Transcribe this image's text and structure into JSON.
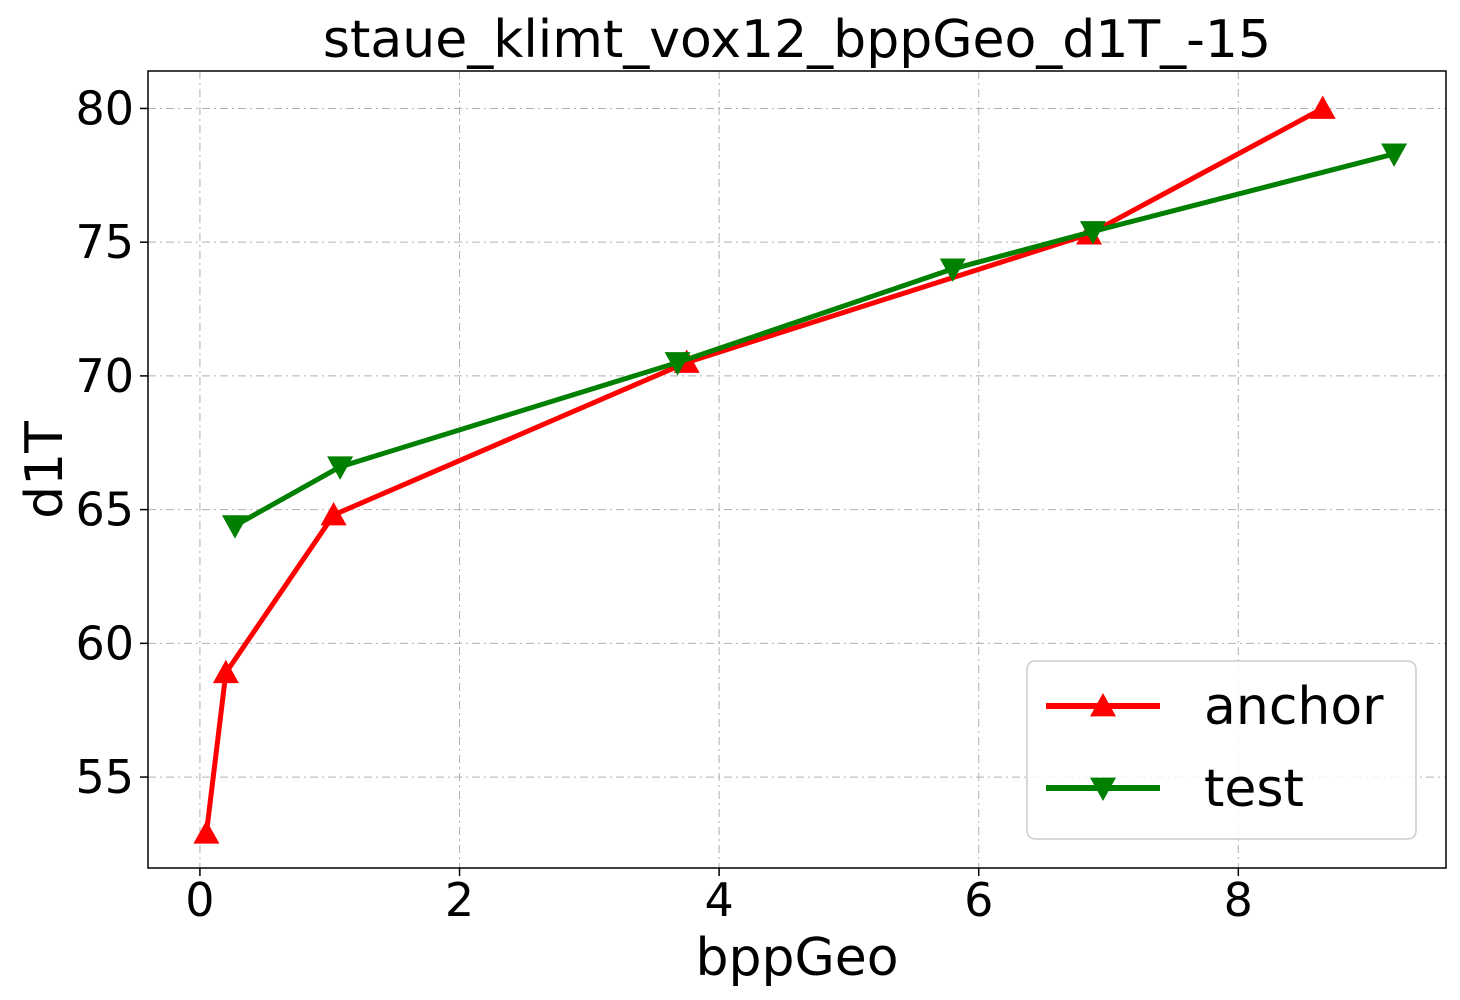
{
  "chart_data": {
    "type": "line",
    "title": "staue_klimt_vox12_bppGeo_d1T_-15",
    "xlabel": "bppGeo",
    "ylabel": "d1T",
    "xlim": [
      -0.4,
      9.6
    ],
    "ylim": [
      51.6,
      81.4
    ],
    "xticks": [
      0,
      2,
      4,
      6,
      8
    ],
    "yticks": [
      55,
      60,
      65,
      70,
      75,
      80
    ],
    "grid": true,
    "legend_position": "lower-right",
    "series": [
      {
        "name": "anchor",
        "color": "#ff0000",
        "marker": "triangle-up",
        "x": [
          0.05,
          0.2,
          1.03,
          3.75,
          6.85,
          8.65
        ],
        "y": [
          52.9,
          58.9,
          64.8,
          70.5,
          75.3,
          80.0
        ]
      },
      {
        "name": "test",
        "color": "#008000",
        "marker": "triangle-down",
        "x": [
          0.27,
          1.08,
          3.68,
          5.8,
          6.88,
          9.2
        ],
        "y": [
          64.4,
          66.6,
          70.5,
          74.0,
          75.4,
          78.3
        ]
      }
    ]
  }
}
